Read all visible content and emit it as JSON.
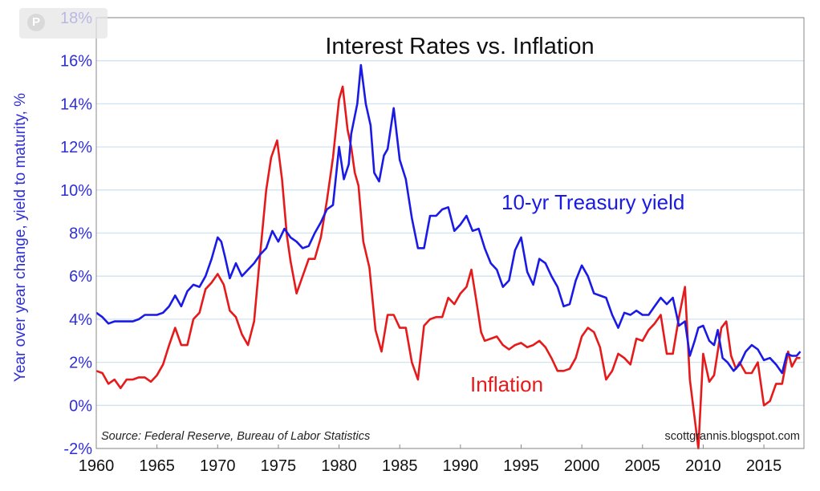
{
  "chart_data": {
    "type": "line",
    "title": "Interest Rates vs. Inflation",
    "ylabel": "Year over year change, yield to maturity, %",
    "xlim": [
      1960,
      2018.3
    ],
    "ylim": [
      -2,
      18
    ],
    "x_ticks": [
      1960,
      1965,
      1970,
      1975,
      1980,
      1985,
      1990,
      1995,
      2000,
      2005,
      2010,
      2015
    ],
    "y_ticks": [
      -2,
      0,
      2,
      4,
      6,
      8,
      10,
      12,
      14,
      16,
      18
    ],
    "y_tick_labels": [
      "-2%",
      "0%",
      "2%",
      "4%",
      "6%",
      "8%",
      "10%",
      "12%",
      "14%",
      "16%",
      "18%"
    ],
    "grid": "horizontal",
    "source": "Source: Federal Reserve, Bureau of Labor Statistics",
    "watermark": "scottgrannis.blogspot.com",
    "colors": {
      "treasury": "#1a1ae6",
      "inflation": "#e61a1a",
      "grid": "#cfe3f0",
      "axis_text": "#2f2fd6"
    },
    "series": [
      {
        "name": "10-yr Treasury yield",
        "key": "treasury",
        "points": [
          [
            1960,
            4.3
          ],
          [
            1960.5,
            4.1
          ],
          [
            1961,
            3.8
          ],
          [
            1961.5,
            3.9
          ],
          [
            1962,
            3.9
          ],
          [
            1962.5,
            3.9
          ],
          [
            1963,
            3.9
          ],
          [
            1963.5,
            4.0
          ],
          [
            1964,
            4.2
          ],
          [
            1964.5,
            4.2
          ],
          [
            1965,
            4.2
          ],
          [
            1965.5,
            4.3
          ],
          [
            1966,
            4.6
          ],
          [
            1966.5,
            5.1
          ],
          [
            1967,
            4.6
          ],
          [
            1967.5,
            5.3
          ],
          [
            1968,
            5.6
          ],
          [
            1968.5,
            5.5
          ],
          [
            1969,
            6.0
          ],
          [
            1969.5,
            6.8
          ],
          [
            1970,
            7.8
          ],
          [
            1970.3,
            7.6
          ],
          [
            1970.6,
            6.9
          ],
          [
            1971,
            5.9
          ],
          [
            1971.5,
            6.6
          ],
          [
            1972,
            6.0
          ],
          [
            1972.5,
            6.3
          ],
          [
            1973,
            6.6
          ],
          [
            1973.5,
            7.0
          ],
          [
            1974,
            7.3
          ],
          [
            1974.5,
            8.1
          ],
          [
            1975,
            7.6
          ],
          [
            1975.5,
            8.2
          ],
          [
            1976,
            7.8
          ],
          [
            1976.5,
            7.6
          ],
          [
            1977,
            7.3
          ],
          [
            1977.5,
            7.4
          ],
          [
            1978,
            8.0
          ],
          [
            1978.5,
            8.5
          ],
          [
            1979,
            9.1
          ],
          [
            1979.5,
            9.3
          ],
          [
            1980,
            12.0
          ],
          [
            1980.4,
            10.5
          ],
          [
            1980.8,
            11.2
          ],
          [
            1981,
            12.6
          ],
          [
            1981.5,
            14.0
          ],
          [
            1981.8,
            15.8
          ],
          [
            1982.2,
            14.0
          ],
          [
            1982.6,
            13.0
          ],
          [
            1982.9,
            10.8
          ],
          [
            1983.3,
            10.4
          ],
          [
            1983.7,
            11.6
          ],
          [
            1984,
            11.9
          ],
          [
            1984.5,
            13.8
          ],
          [
            1985,
            11.4
          ],
          [
            1985.5,
            10.5
          ],
          [
            1986,
            8.7
          ],
          [
            1986.5,
            7.3
          ],
          [
            1987,
            7.3
          ],
          [
            1987.5,
            8.8
          ],
          [
            1988,
            8.8
          ],
          [
            1988.5,
            9.1
          ],
          [
            1989,
            9.2
          ],
          [
            1989.5,
            8.1
          ],
          [
            1990,
            8.4
          ],
          [
            1990.5,
            8.8
          ],
          [
            1991,
            8.1
          ],
          [
            1991.5,
            8.2
          ],
          [
            1992,
            7.3
          ],
          [
            1992.5,
            6.6
          ],
          [
            1993,
            6.3
          ],
          [
            1993.5,
            5.5
          ],
          [
            1994,
            5.8
          ],
          [
            1994.5,
            7.2
          ],
          [
            1995,
            7.8
          ],
          [
            1995.5,
            6.2
          ],
          [
            1996,
            5.6
          ],
          [
            1996.5,
            6.8
          ],
          [
            1997,
            6.6
          ],
          [
            1997.5,
            6.0
          ],
          [
            1998,
            5.5
          ],
          [
            1998.5,
            4.6
          ],
          [
            1999,
            4.7
          ],
          [
            1999.5,
            5.8
          ],
          [
            2000,
            6.5
          ],
          [
            2000.5,
            6.0
          ],
          [
            2001,
            5.2
          ],
          [
            2001.5,
            5.1
          ],
          [
            2002,
            5.0
          ],
          [
            2002.5,
            4.2
          ],
          [
            2003,
            3.6
          ],
          [
            2003.5,
            4.3
          ],
          [
            2004,
            4.2
          ],
          [
            2004.5,
            4.4
          ],
          [
            2005,
            4.2
          ],
          [
            2005.5,
            4.2
          ],
          [
            2006,
            4.6
          ],
          [
            2006.5,
            5.0
          ],
          [
            2007,
            4.7
          ],
          [
            2007.5,
            5.0
          ],
          [
            2008,
            3.7
          ],
          [
            2008.5,
            3.9
          ],
          [
            2008.9,
            2.3
          ],
          [
            2009.3,
            3.0
          ],
          [
            2009.6,
            3.6
          ],
          [
            2010,
            3.7
          ],
          [
            2010.5,
            3.0
          ],
          [
            2010.9,
            2.8
          ],
          [
            2011.2,
            3.5
          ],
          [
            2011.6,
            2.2
          ],
          [
            2012,
            2.0
          ],
          [
            2012.5,
            1.6
          ],
          [
            2013,
            1.9
          ],
          [
            2013.5,
            2.5
          ],
          [
            2014,
            2.8
          ],
          [
            2014.5,
            2.6
          ],
          [
            2015,
            2.1
          ],
          [
            2015.5,
            2.2
          ],
          [
            2016,
            1.9
          ],
          [
            2016.5,
            1.5
          ],
          [
            2016.9,
            2.4
          ],
          [
            2017.3,
            2.3
          ],
          [
            2017.7,
            2.3
          ],
          [
            2018,
            2.5
          ]
        ]
      },
      {
        "name": "Inflation",
        "key": "inflation",
        "points": [
          [
            1960,
            1.6
          ],
          [
            1960.5,
            1.5
          ],
          [
            1961,
            1.0
          ],
          [
            1961.5,
            1.2
          ],
          [
            1962,
            0.8
          ],
          [
            1962.5,
            1.2
          ],
          [
            1963,
            1.2
          ],
          [
            1963.5,
            1.3
          ],
          [
            1964,
            1.3
          ],
          [
            1964.5,
            1.1
          ],
          [
            1965,
            1.4
          ],
          [
            1965.5,
            1.9
          ],
          [
            1966,
            2.8
          ],
          [
            1966.5,
            3.6
          ],
          [
            1967,
            2.8
          ],
          [
            1967.5,
            2.8
          ],
          [
            1968,
            4.0
          ],
          [
            1968.5,
            4.3
          ],
          [
            1969,
            5.4
          ],
          [
            1969.5,
            5.7
          ],
          [
            1970,
            6.1
          ],
          [
            1970.5,
            5.6
          ],
          [
            1971,
            4.4
          ],
          [
            1971.5,
            4.1
          ],
          [
            1972,
            3.3
          ],
          [
            1972.5,
            2.8
          ],
          [
            1973,
            3.9
          ],
          [
            1973.5,
            7.0
          ],
          [
            1974,
            10.0
          ],
          [
            1974.4,
            11.5
          ],
          [
            1974.9,
            12.3
          ],
          [
            1975.3,
            10.5
          ],
          [
            1975.7,
            7.9
          ],
          [
            1976,
            6.7
          ],
          [
            1976.5,
            5.2
          ],
          [
            1977,
            6.0
          ],
          [
            1977.5,
            6.8
          ],
          [
            1978,
            6.8
          ],
          [
            1978.5,
            7.8
          ],
          [
            1979,
            9.5
          ],
          [
            1979.5,
            11.5
          ],
          [
            1980,
            14.2
          ],
          [
            1980.3,
            14.8
          ],
          [
            1980.7,
            12.8
          ],
          [
            1981,
            12.0
          ],
          [
            1981.3,
            10.8
          ],
          [
            1981.6,
            10.2
          ],
          [
            1982,
            7.6
          ],
          [
            1982.5,
            6.4
          ],
          [
            1983,
            3.5
          ],
          [
            1983.5,
            2.5
          ],
          [
            1984,
            4.2
          ],
          [
            1984.5,
            4.2
          ],
          [
            1985,
            3.6
          ],
          [
            1985.5,
            3.6
          ],
          [
            1986,
            2.0
          ],
          [
            1986.5,
            1.2
          ],
          [
            1987,
            3.7
          ],
          [
            1987.5,
            4.0
          ],
          [
            1988,
            4.1
          ],
          [
            1988.5,
            4.1
          ],
          [
            1989,
            5.0
          ],
          [
            1989.5,
            4.7
          ],
          [
            1990,
            5.2
          ],
          [
            1990.5,
            5.5
          ],
          [
            1990.9,
            6.3
          ],
          [
            1991.3,
            4.9
          ],
          [
            1991.7,
            3.4
          ],
          [
            1992,
            3.0
          ],
          [
            1992.5,
            3.1
          ],
          [
            1993,
            3.2
          ],
          [
            1993.5,
            2.8
          ],
          [
            1994,
            2.6
          ],
          [
            1994.5,
            2.8
          ],
          [
            1995,
            2.9
          ],
          [
            1995.5,
            2.7
          ],
          [
            1996,
            2.8
          ],
          [
            1996.5,
            3.0
          ],
          [
            1997,
            2.7
          ],
          [
            1997.5,
            2.2
          ],
          [
            1998,
            1.6
          ],
          [
            1998.5,
            1.6
          ],
          [
            1999,
            1.7
          ],
          [
            1999.5,
            2.2
          ],
          [
            2000,
            3.2
          ],
          [
            2000.5,
            3.6
          ],
          [
            2001,
            3.4
          ],
          [
            2001.5,
            2.7
          ],
          [
            2002,
            1.2
          ],
          [
            2002.5,
            1.6
          ],
          [
            2003,
            2.4
          ],
          [
            2003.5,
            2.2
          ],
          [
            2004,
            1.9
          ],
          [
            2004.5,
            3.1
          ],
          [
            2005,
            3.0
          ],
          [
            2005.5,
            3.5
          ],
          [
            2006,
            3.8
          ],
          [
            2006.5,
            4.2
          ],
          [
            2007,
            2.4
          ],
          [
            2007.5,
            2.4
          ],
          [
            2008,
            4.1
          ],
          [
            2008.5,
            5.5
          ],
          [
            2008.9,
            1.2
          ],
          [
            2009.3,
            -0.6
          ],
          [
            2009.6,
            -2.0
          ],
          [
            2010,
            2.4
          ],
          [
            2010.5,
            1.1
          ],
          [
            2010.9,
            1.4
          ],
          [
            2011.5,
            3.6
          ],
          [
            2011.9,
            3.9
          ],
          [
            2012.3,
            2.3
          ],
          [
            2012.7,
            1.7
          ],
          [
            2013,
            2.0
          ],
          [
            2013.5,
            1.5
          ],
          [
            2014,
            1.5
          ],
          [
            2014.5,
            2.0
          ],
          [
            2015,
            0.0
          ],
          [
            2015.5,
            0.2
          ],
          [
            2016,
            1.0
          ],
          [
            2016.5,
            1.0
          ],
          [
            2017,
            2.5
          ],
          [
            2017.3,
            1.8
          ],
          [
            2017.7,
            2.2
          ],
          [
            2018,
            2.2
          ]
        ]
      }
    ],
    "series_labels": [
      "10-yr Treasury yield",
      "Inflation"
    ]
  }
}
